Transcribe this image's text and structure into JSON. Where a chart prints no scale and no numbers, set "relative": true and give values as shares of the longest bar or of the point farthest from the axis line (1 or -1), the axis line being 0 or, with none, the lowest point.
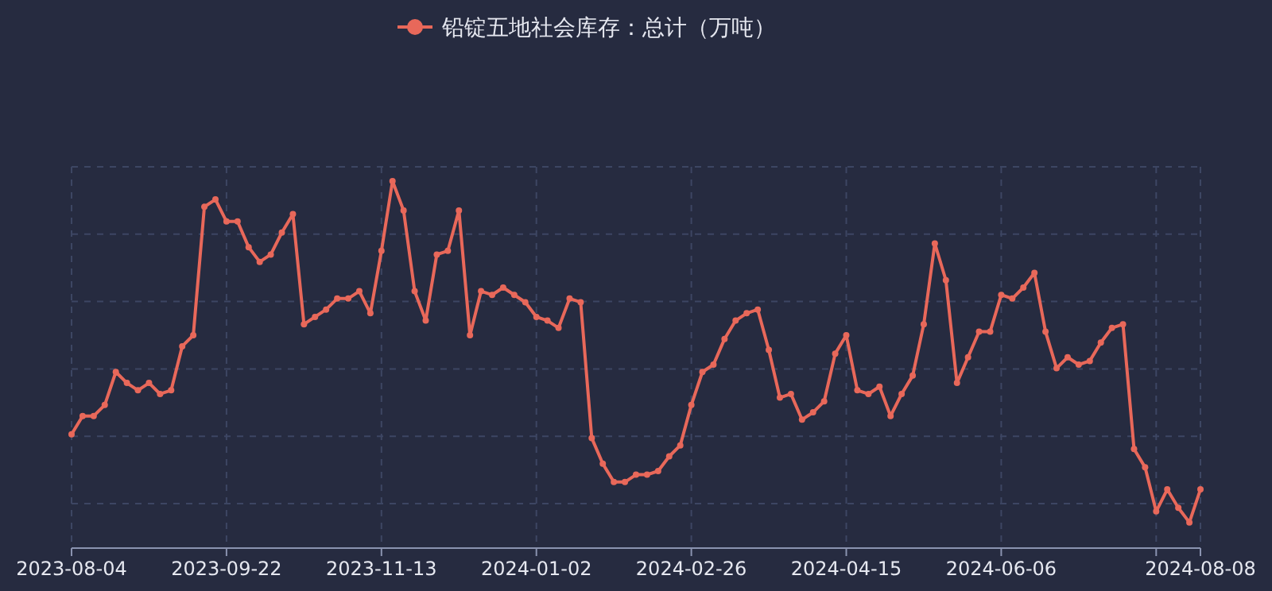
{
  "chart_data": {
    "type": "line",
    "relative": true,
    "legend": "top",
    "marker": "circle",
    "line_style": "solid",
    "grid": true,
    "categories": [
      "2023-08-04",
      null,
      null,
      null,
      null,
      null,
      null,
      null,
      null,
      null,
      null,
      null,
      null,
      null,
      "2023-09-22",
      null,
      null,
      null,
      null,
      null,
      null,
      null,
      null,
      null,
      null,
      null,
      null,
      null,
      "2023-11-13",
      null,
      null,
      null,
      null,
      null,
      null,
      null,
      null,
      null,
      null,
      null,
      null,
      null,
      "2024-01-02",
      null,
      null,
      null,
      null,
      null,
      null,
      null,
      null,
      null,
      null,
      null,
      null,
      null,
      "2024-02-26",
      null,
      null,
      null,
      null,
      null,
      null,
      null,
      null,
      null,
      null,
      null,
      null,
      null,
      "2024-04-15",
      null,
      null,
      null,
      null,
      null,
      null,
      null,
      null,
      null,
      null,
      null,
      null,
      null,
      "2024-06-06",
      null,
      null,
      null,
      null,
      null,
      null,
      null,
      null,
      null,
      null,
      null,
      null,
      null,
      null,
      null,
      null,
      null,
      "2024-08-08"
    ],
    "series": [
      {
        "name": "铅锭五地社会库存：总计（万吨）",
        "color": "#e8685a",
        "values": [
          0.31,
          0.36,
          0.36,
          0.39,
          0.48,
          0.45,
          0.43,
          0.45,
          0.42,
          0.43,
          0.55,
          0.58,
          0.93,
          0.95,
          0.89,
          0.89,
          0.82,
          0.78,
          0.8,
          0.86,
          0.91,
          0.61,
          0.63,
          0.65,
          0.68,
          0.68,
          0.7,
          0.64,
          0.81,
          1,
          0.92,
          0.7,
          0.62,
          0.8,
          0.81,
          0.92,
          0.58,
          0.7,
          0.69,
          0.71,
          0.69,
          0.67,
          0.63,
          0.62,
          0.6,
          0.68,
          0.67,
          0.3,
          0.23,
          0.18,
          0.18,
          0.2,
          0.2,
          0.21,
          0.25,
          0.28,
          0.39,
          0.48,
          0.5,
          0.57,
          0.62,
          0.64,
          0.65,
          0.54,
          0.41,
          0.42,
          0.35,
          0.37,
          0.4,
          0.53,
          0.58,
          0.43,
          0.42,
          0.44,
          0.36,
          0.42,
          0.47,
          0.61,
          0.83,
          0.73,
          0.45,
          0.52,
          0.59,
          0.59,
          0.69,
          0.68,
          0.71,
          0.75,
          0.59,
          0.49,
          0.52,
          0.5,
          0.51,
          0.56,
          0.6,
          0.61,
          0.27,
          0.22,
          0.1,
          0.16,
          0.11,
          0.07,
          0.16
        ]
      }
    ]
  }
}
